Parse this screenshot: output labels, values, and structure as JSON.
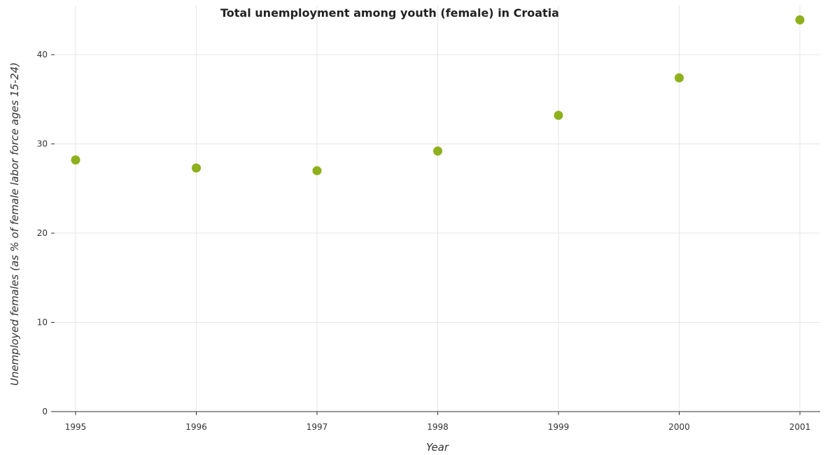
{
  "chart_data": {
    "type": "scatter",
    "title": "Total unemployment among youth (female) in Croatia",
    "xlabel": "Year",
    "ylabel": "Unemployed females (as % of female labor force ages 15-24)",
    "categories": [
      "1995",
      "1996",
      "1997",
      "1998",
      "1999",
      "2000",
      "2001"
    ],
    "series": [
      {
        "values": [
          28.2,
          27.3,
          27.0,
          29.2,
          33.2,
          37.4,
          43.9
        ]
      }
    ],
    "ylim": [
      0,
      45.5
    ],
    "yticks": [
      0,
      10,
      20,
      30,
      40
    ],
    "grid": true,
    "legend": "none",
    "marker_color": "#8db01c"
  }
}
